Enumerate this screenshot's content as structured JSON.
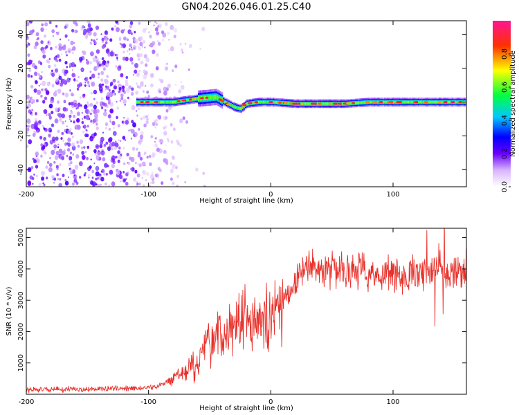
{
  "title": "GN04.2026.046.01.25.C40",
  "chart_data": [
    {
      "type": "heatmap",
      "xlabel": "Height of straight line (km)",
      "ylabel": "Frequency (Hz)",
      "xlim": [
        -200,
        160
      ],
      "ylim": [
        -50,
        48
      ],
      "xticks": [
        "-200",
        "-100",
        "0",
        "100"
      ],
      "yticks": [
        "40",
        "20",
        "0",
        "-20",
        "-40"
      ],
      "colorbar": {
        "label": "Normalized spectral amplitude",
        "range": [
          0,
          1
        ],
        "ticks": [
          "0.0",
          "0.2",
          "0.4",
          "0.6",
          "0.8"
        ],
        "colors": [
          "#ffffff",
          "#8a2be2",
          "#0000ff",
          "#00ffff",
          "#00ff00",
          "#ffff00",
          "#ff0000",
          "#ff1493"
        ]
      },
      "ridge": {
        "description_points_km_hz": [
          [
            -110,
            0
          ],
          [
            -80,
            0
          ],
          [
            -60,
            2
          ],
          [
            -45,
            3
          ],
          [
            -38,
            0
          ],
          [
            -30,
            -3
          ],
          [
            -25,
            -4
          ],
          [
            -20,
            -1
          ],
          [
            -10,
            0
          ],
          [
            0,
            0
          ],
          [
            20,
            -1
          ],
          [
            40,
            -1
          ],
          [
            60,
            -1
          ],
          [
            80,
            0
          ],
          [
            100,
            0
          ],
          [
            120,
            0
          ],
          [
            140,
            0
          ],
          [
            160,
            0
          ]
        ],
        "peak_amplitude": 1.0
      },
      "noise_region_km": [
        -200,
        -70
      ]
    },
    {
      "type": "line",
      "xlabel": "Height of straight line (km)",
      "ylabel": "SNR (10 * v/v)",
      "xlim": [
        -200,
        160
      ],
      "ylim": [
        0,
        5300
      ],
      "xticks": [
        "-200",
        "-100",
        "0",
        "100"
      ],
      "yticks": [
        "5000",
        "4000",
        "3000",
        "2000",
        "1000"
      ],
      "series": [
        {
          "name": "SNR",
          "color": "#e8312b",
          "envelope_km_snr": [
            [
              -200,
              150
            ],
            [
              -120,
              180
            ],
            [
              -100,
              200
            ],
            [
              -90,
              300
            ],
            [
              -80,
              500
            ],
            [
              -70,
              700
            ],
            [
              -60,
              1000
            ],
            [
              -50,
              1600
            ],
            [
              -40,
              1800
            ],
            [
              -30,
              2200
            ],
            [
              -20,
              2500
            ],
            [
              -10,
              2200
            ],
            [
              0,
              2400
            ],
            [
              10,
              3000
            ],
            [
              20,
              3600
            ],
            [
              30,
              4100
            ],
            [
              40,
              4000
            ],
            [
              60,
              4000
            ],
            [
              80,
              3900
            ],
            [
              100,
              3800
            ],
            [
              120,
              3900
            ],
            [
              140,
              4000
            ],
            [
              160,
              3900
            ]
          ]
        }
      ]
    }
  ]
}
